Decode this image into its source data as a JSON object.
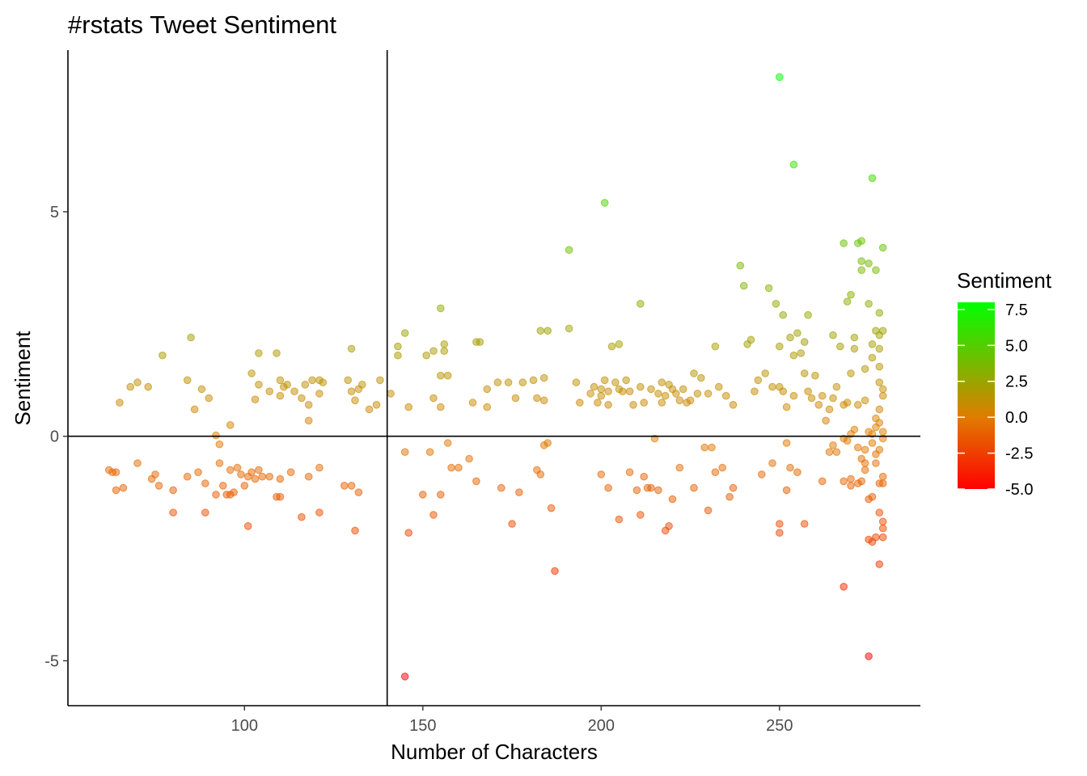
{
  "chart_data": {
    "type": "scatter",
    "title": "#rstats Tweet Sentiment",
    "xlabel": "Number of Characters",
    "ylabel": "Sentiment",
    "xlim": [
      50.5,
      289.5
    ],
    "ylim": [
      -6.0,
      8.6
    ],
    "xticks": [
      100,
      150,
      200,
      250
    ],
    "xtick_labels": [
      "100",
      "150",
      "200",
      "250"
    ],
    "yticks": [
      -5,
      0,
      5
    ],
    "ytick_labels": [
      "-5",
      "0",
      "5"
    ],
    "reference_lines": {
      "x": 140,
      "y": 0
    },
    "grid": false,
    "legend": {
      "title": "Sentiment",
      "position": "right",
      "type": "colorbar",
      "range": [
        -5.0,
        8.0
      ],
      "ticks": [
        7.5,
        5.0,
        2.5,
        0.0,
        -2.5,
        -5.0
      ],
      "tick_labels": [
        "7.5",
        "5.0",
        "2.5",
        "0.0",
        "-2.5",
        "-5.0"
      ],
      "low_color": "#ff0000",
      "mid_color": "#e07c00",
      "high_color": "#00ff00"
    },
    "point_opacity": 0.5,
    "points": [
      [
        65,
        0.75
      ],
      [
        68,
        1.1
      ],
      [
        70,
        1.2
      ],
      [
        73,
        1.1
      ],
      [
        77,
        1.8
      ],
      [
        84,
        1.25
      ],
      [
        85,
        2.2
      ],
      [
        86,
        0.6
      ],
      [
        88,
        1.05
      ],
      [
        90,
        0.85
      ],
      [
        92,
        0.02
      ],
      [
        93,
        -0.18
      ],
      [
        96,
        0.25
      ],
      [
        102,
        1.4
      ],
      [
        103,
        0.82
      ],
      [
        104,
        1.85
      ],
      [
        104,
        1.15
      ],
      [
        107,
        1.0
      ],
      [
        109,
        1.85
      ],
      [
        110,
        1.25
      ],
      [
        110,
        0.9
      ],
      [
        111,
        1.1
      ],
      [
        112,
        1.15
      ],
      [
        114,
        1.0
      ],
      [
        116,
        0.85
      ],
      [
        117,
        1.15
      ],
      [
        118,
        0.35
      ],
      [
        118,
        0.7
      ],
      [
        119,
        1.25
      ],
      [
        121,
        0.95
      ],
      [
        121,
        1.25
      ],
      [
        122,
        1.2
      ],
      [
        129,
        1.25
      ],
      [
        130,
        1.0
      ],
      [
        130,
        1.95
      ],
      [
        131,
        0.8
      ],
      [
        132,
        1.05
      ],
      [
        133,
        1.15
      ],
      [
        135,
        0.6
      ],
      [
        137,
        0.7
      ],
      [
        138,
        1.25
      ],
      [
        141,
        0.95
      ],
      [
        143,
        1.8
      ],
      [
        143,
        2.0
      ],
      [
        145,
        2.3
      ],
      [
        146,
        0.65
      ],
      [
        151,
        1.8
      ],
      [
        153,
        1.9
      ],
      [
        153,
        0.85
      ],
      [
        155,
        2.85
      ],
      [
        156,
        2.05
      ],
      [
        155,
        1.35
      ],
      [
        156,
        1.9
      ],
      [
        157,
        1.35
      ],
      [
        155,
        0.65
      ],
      [
        164,
        0.75
      ],
      [
        165,
        2.1
      ],
      [
        166,
        2.1
      ],
      [
        168,
        1.05
      ],
      [
        168,
        0.65
      ],
      [
        171,
        1.2
      ],
      [
        174,
        1.2
      ],
      [
        176,
        0.85
      ],
      [
        178,
        1.2
      ],
      [
        181,
        1.25
      ],
      [
        182,
        0.85
      ],
      [
        183,
        2.35
      ],
      [
        185,
        2.35
      ],
      [
        184,
        1.3
      ],
      [
        184,
        0.8
      ],
      [
        191,
        2.4
      ],
      [
        191,
        4.15
      ],
      [
        193,
        1.2
      ],
      [
        194,
        0.75
      ],
      [
        197,
        0.95
      ],
      [
        198,
        1.1
      ],
      [
        199,
        0.75
      ],
      [
        200,
        0.9
      ],
      [
        200,
        1.05
      ],
      [
        201,
        1.25
      ],
      [
        202,
        1.0
      ],
      [
        201,
        5.2
      ],
      [
        202,
        0.7
      ],
      [
        203,
        2.0
      ],
      [
        204,
        1.2
      ],
      [
        205,
        2.05
      ],
      [
        205,
        1.05
      ],
      [
        206,
        1.0
      ],
      [
        207,
        1.25
      ],
      [
        208,
        1.0
      ],
      [
        209,
        0.7
      ],
      [
        211,
        2.95
      ],
      [
        211,
        1.1
      ],
      [
        212,
        0.75
      ],
      [
        214,
        1.05
      ],
      [
        216,
        0.95
      ],
      [
        217,
        1.2
      ],
      [
        217,
        0.75
      ],
      [
        218,
        0.9
      ],
      [
        219,
        1.15
      ],
      [
        220,
        1.05
      ],
      [
        221,
        0.95
      ],
      [
        222,
        0.8
      ],
      [
        223,
        1.05
      ],
      [
        224,
        0.75
      ],
      [
        225,
        0.8
      ],
      [
        226,
        1.4
      ],
      [
        227,
        0.95
      ],
      [
        228,
        1.3
      ],
      [
        230,
        0.95
      ],
      [
        232,
        2.0
      ],
      [
        233,
        1.1
      ],
      [
        235,
        0.9
      ],
      [
        237,
        0.7
      ],
      [
        239,
        3.8
      ],
      [
        240,
        3.35
      ],
      [
        241,
        2.05
      ],
      [
        242,
        2.15
      ],
      [
        243,
        1.0
      ],
      [
        244,
        1.25
      ],
      [
        246,
        1.4
      ],
      [
        247,
        3.3
      ],
      [
        248,
        1.1
      ],
      [
        249,
        2.95
      ],
      [
        250,
        2.0
      ],
      [
        250,
        1.1
      ],
      [
        251,
        1.0
      ],
      [
        251,
        2.7
      ],
      [
        252,
        0.65
      ],
      [
        253,
        2.2
      ],
      [
        254,
        1.8
      ],
      [
        254,
        0.9
      ],
      [
        255,
        2.3
      ],
      [
        256,
        1.85
      ],
      [
        257,
        1.4
      ],
      [
        257,
        2.1
      ],
      [
        258,
        2.7
      ],
      [
        258,
        1.0
      ],
      [
        259,
        0.85
      ],
      [
        260,
        1.35
      ],
      [
        261,
        0.7
      ],
      [
        262,
        0.9
      ],
      [
        263,
        0.35
      ],
      [
        264,
        0.6
      ],
      [
        265,
        2.25
      ],
      [
        265,
        0.85
      ],
      [
        266,
        1.1
      ],
      [
        267,
        2.0
      ],
      [
        268,
        4.3
      ],
      [
        268,
        0.7
      ],
      [
        269,
        3.0
      ],
      [
        269,
        0.75
      ],
      [
        270,
        3.15
      ],
      [
        270,
        1.4
      ],
      [
        271,
        2.2
      ],
      [
        271,
        1.95
      ],
      [
        272,
        4.3
      ],
      [
        272,
        0.7
      ],
      [
        273,
        4.35
      ],
      [
        273,
        3.9
      ],
      [
        273,
        3.7
      ],
      [
        274,
        0.8
      ],
      [
        274,
        1.5
      ],
      [
        275,
        2.95
      ],
      [
        275,
        3.85
      ],
      [
        276,
        5.75
      ],
      [
        276,
        2.05
      ],
      [
        276,
        1.75
      ],
      [
        277,
        3.7
      ],
      [
        277,
        2.35
      ],
      [
        278,
        2.25
      ],
      [
        278,
        1.95
      ],
      [
        278,
        1.55
      ],
      [
        278,
        2.75
      ],
      [
        279,
        4.2
      ],
      [
        279,
        2.35
      ],
      [
        279,
        1.05
      ],
      [
        279,
        0.9
      ],
      [
        278,
        1.2
      ],
      [
        278,
        0.6
      ],
      [
        277,
        0.4
      ],
      [
        277,
        0.2
      ],
      [
        276,
        0.05
      ],
      [
        275,
        0.1
      ],
      [
        278,
        0.3
      ],
      [
        279,
        0.1
      ],
      [
        271,
        0.15
      ],
      [
        270,
        0.05
      ],
      [
        269,
        -0.1
      ],
      [
        265,
        -0.2
      ],
      [
        264,
        -0.35
      ],
      [
        266,
        -0.35
      ],
      [
        268,
        -0.05
      ],
      [
        272,
        -0.25
      ],
      [
        276,
        -0.15
      ],
      [
        277,
        -0.4
      ],
      [
        278,
        -0.3
      ],
      [
        279,
        -0.05
      ],
      [
        274,
        -0.3
      ],
      [
        273,
        -0.5
      ],
      [
        250,
        8.0
      ],
      [
        254,
        6.05
      ],
      [
        252,
        -0.15
      ],
      [
        62,
        -0.75
      ],
      [
        63,
        -0.8
      ],
      [
        64,
        -0.8
      ],
      [
        64,
        -1.2
      ],
      [
        66,
        -1.15
      ],
      [
        70,
        -0.6
      ],
      [
        74,
        -0.95
      ],
      [
        75,
        -0.85
      ],
      [
        76,
        -1.1
      ],
      [
        80,
        -1.2
      ],
      [
        80,
        -1.7
      ],
      [
        84,
        -0.9
      ],
      [
        87,
        -0.8
      ],
      [
        89,
        -1.05
      ],
      [
        89,
        -1.7
      ],
      [
        92,
        -1.3
      ],
      [
        93,
        -0.6
      ],
      [
        94,
        -1.1
      ],
      [
        95,
        -1.3
      ],
      [
        96,
        -0.75
      ],
      [
        96,
        -1.3
      ],
      [
        97,
        -1.25
      ],
      [
        98,
        -0.7
      ],
      [
        99,
        -0.85
      ],
      [
        100,
        -1.1
      ],
      [
        101,
        -0.9
      ],
      [
        101,
        -2.0
      ],
      [
        102,
        -0.8
      ],
      [
        103,
        -0.95
      ],
      [
        104,
        -0.75
      ],
      [
        105,
        -0.9
      ],
      [
        107,
        -0.9
      ],
      [
        109,
        -1.35
      ],
      [
        110,
        -0.95
      ],
      [
        110,
        -1.35
      ],
      [
        113,
        -0.8
      ],
      [
        116,
        -1.8
      ],
      [
        118,
        -0.9
      ],
      [
        121,
        -0.7
      ],
      [
        121,
        -1.7
      ],
      [
        128,
        -1.1
      ],
      [
        130,
        -1.1
      ],
      [
        131,
        -2.1
      ],
      [
        132,
        -1.25
      ],
      [
        145,
        -0.35
      ],
      [
        145,
        -5.35
      ],
      [
        146,
        -2.15
      ],
      [
        150,
        -1.3
      ],
      [
        152,
        -0.35
      ],
      [
        153,
        -1.75
      ],
      [
        155,
        -1.3
      ],
      [
        157,
        -0.15
      ],
      [
        158,
        -0.7
      ],
      [
        160,
        -0.7
      ],
      [
        163,
        -0.5
      ],
      [
        165,
        -1.0
      ],
      [
        172,
        -1.15
      ],
      [
        175,
        -1.95
      ],
      [
        177,
        -1.25
      ],
      [
        182,
        -0.75
      ],
      [
        183,
        -0.85
      ],
      [
        184,
        -0.2
      ],
      [
        185,
        -0.15
      ],
      [
        186,
        -1.6
      ],
      [
        187,
        -3.0
      ],
      [
        200,
        -0.85
      ],
      [
        202,
        -1.15
      ],
      [
        205,
        -1.85
      ],
      [
        208,
        -0.8
      ],
      [
        210,
        -1.2
      ],
      [
        211,
        -1.75
      ],
      [
        212,
        -0.9
      ],
      [
        213,
        -1.15
      ],
      [
        214,
        -1.15
      ],
      [
        215,
        -0.05
      ],
      [
        216,
        -1.2
      ],
      [
        218,
        -2.1
      ],
      [
        219,
        -2.0
      ],
      [
        220,
        -1.4
      ],
      [
        222,
        -0.7
      ],
      [
        226,
        -1.15
      ],
      [
        229,
        -0.25
      ],
      [
        230,
        -1.65
      ],
      [
        231,
        -0.25
      ],
      [
        232,
        -0.8
      ],
      [
        234,
        -0.7
      ],
      [
        236,
        -1.35
      ],
      [
        237,
        -1.15
      ],
      [
        245,
        -0.85
      ],
      [
        248,
        -0.6
      ],
      [
        250,
        -1.95
      ],
      [
        250,
        -2.15
      ],
      [
        252,
        -1.2
      ],
      [
        253,
        -0.7
      ],
      [
        255,
        -0.8
      ],
      [
        257,
        -1.95
      ],
      [
        262,
        -1.0
      ],
      [
        268,
        -1.0
      ],
      [
        268,
        -3.35
      ],
      [
        270,
        -1.1
      ],
      [
        270,
        -0.95
      ],
      [
        272,
        -1.05
      ],
      [
        273,
        -1.0
      ],
      [
        274,
        -0.6
      ],
      [
        275,
        -1.4
      ],
      [
        275,
        -2.3
      ],
      [
        275,
        -4.9
      ],
      [
        276,
        -2.35
      ],
      [
        277,
        -0.6
      ],
      [
        277,
        -2.25
      ],
      [
        278,
        -2.85
      ],
      [
        278,
        -1.05
      ],
      [
        279,
        -0.9
      ],
      [
        279,
        -1.05
      ],
      [
        279,
        -1.9
      ],
      [
        279,
        -2.05
      ],
      [
        279,
        -2.25
      ],
      [
        278,
        -1.7
      ],
      [
        276,
        -1.35
      ],
      [
        274,
        -0.75
      ]
    ]
  }
}
